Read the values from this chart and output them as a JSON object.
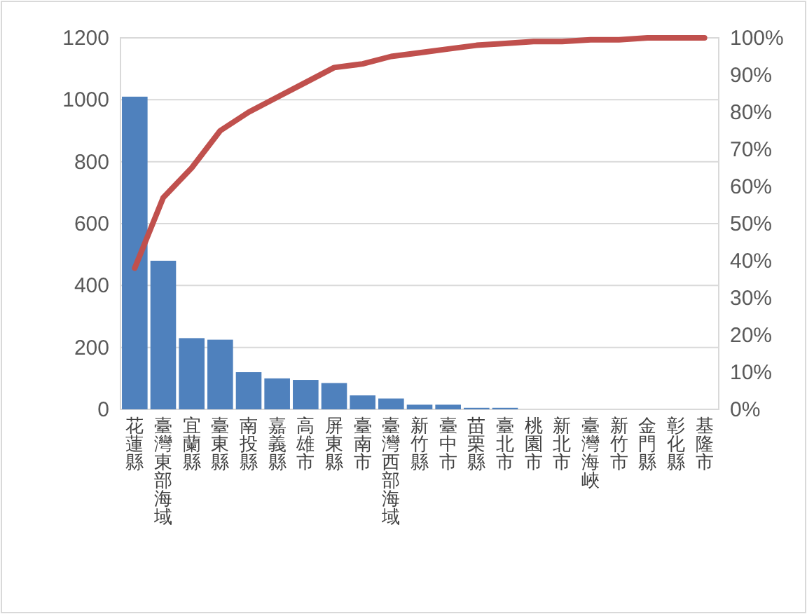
{
  "chart_data": {
    "type": "bar",
    "categories": [
      "花蓮縣",
      "臺灣東部海域",
      "宜蘭縣",
      "臺東縣",
      "南投縣",
      "嘉義縣",
      "高雄市",
      "屏東縣",
      "臺南市",
      "臺灣西部海域",
      "新竹縣",
      "臺中市",
      "苗栗縣",
      "臺北市",
      "桃園市",
      "新北市",
      "臺灣海峽",
      "新竹市",
      "金門縣",
      "彰化縣",
      "基隆市"
    ],
    "series": [
      {
        "color": "#4f81bd",
        "values": [
          1010,
          480,
          230,
          225,
          120,
          100,
          95,
          85,
          45,
          35,
          15,
          15,
          5,
          5,
          0,
          0,
          0,
          0,
          0,
          0,
          0
        ]
      },
      {
        "type": "line",
        "axis": "y2",
        "color": "#c0504d",
        "values": [
          38,
          57,
          65,
          75,
          80,
          84,
          88,
          92,
          93,
          95,
          96,
          97,
          98,
          98.5,
          99,
          99,
          99.5,
          99.5,
          100,
          100,
          100
        ]
      }
    ],
    "ylim": [
      0,
      1200
    ],
    "yticks": [
      0,
      200,
      400,
      600,
      800,
      1000,
      1200
    ],
    "y2lim": [
      0,
      100
    ],
    "y2ticks": [
      {
        "value": 0,
        "label": "0%"
      },
      {
        "value": 10,
        "label": "10%"
      },
      {
        "value": 20,
        "label": "20%"
      },
      {
        "value": 30,
        "label": "30%"
      },
      {
        "value": 40,
        "label": "40%"
      },
      {
        "value": 50,
        "label": "50%"
      },
      {
        "value": 60,
        "label": "60%"
      },
      {
        "value": 70,
        "label": "70%"
      },
      {
        "value": 80,
        "label": "80%"
      },
      {
        "value": 90,
        "label": "90%"
      },
      {
        "value": 100,
        "label": "100%"
      }
    ],
    "grid": "y",
    "marker": "none",
    "line_style": "solid"
  }
}
